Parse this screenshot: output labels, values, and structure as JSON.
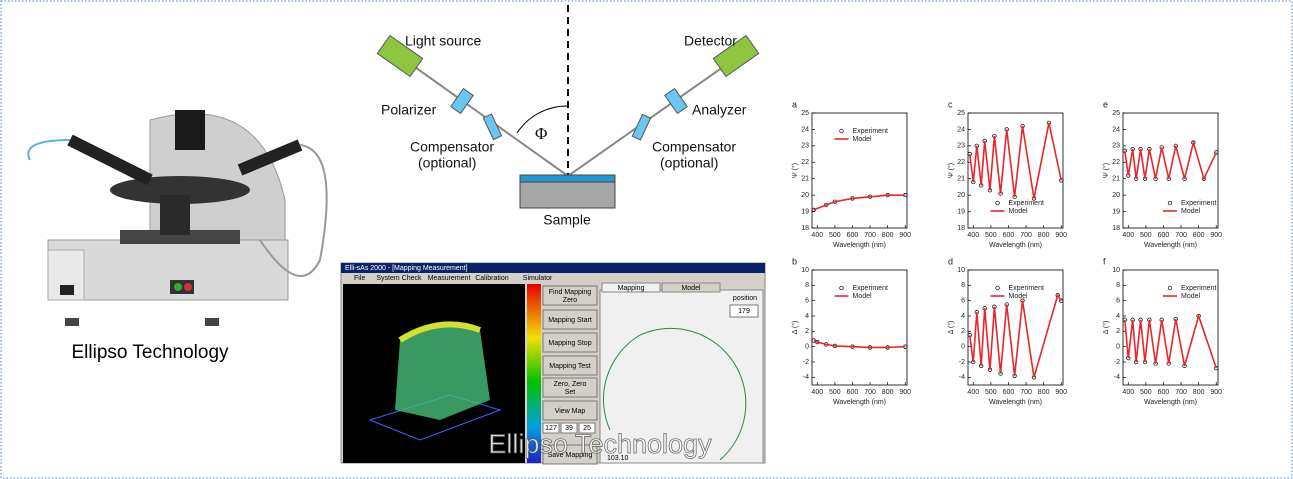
{
  "photo": {
    "caption": "Ellipso Technology"
  },
  "diagram": {
    "light_source": "Light source",
    "detector": "Detector",
    "polarizer": "Polarizer",
    "analyzer": "Analyzer",
    "compensator_left": [
      "Compensator",
      "(optional)"
    ],
    "compensator_right": [
      "Compensator",
      "(optional)"
    ],
    "angle": "Φ",
    "sample": "Sample"
  },
  "software": {
    "title": "Elli-sAs 2000 - [Mapping Measurement]",
    "menu": [
      "File",
      "System Check",
      "Measurement",
      "Calibration",
      "Simulator"
    ],
    "buttons": [
      [
        "Find Mapping",
        "Zero"
      ],
      [
        "Mapping Start"
      ],
      [
        "Mapping Stop"
      ],
      [
        "Mapping Test"
      ],
      [
        "Zero, Zero",
        "Set"
      ],
      [
        "View Map"
      ],
      [
        "Save Mapping"
      ]
    ],
    "tabs": [
      "Mapping",
      "Model"
    ],
    "position_label": "position",
    "position_value": "179",
    "fields": [
      "127",
      "39",
      "25"
    ],
    "reading": "103.10",
    "watermark": "Ellipso Technology"
  },
  "chart_data": [
    {
      "type": "line",
      "panel": "a",
      "xlabel": "Wavelength (nm)",
      "ylabel": "Ψ (°)",
      "legend": "upper center",
      "x": [
        380,
        450,
        500,
        600,
        700,
        800,
        900
      ],
      "xlim": [
        370,
        910
      ],
      "xticks": [
        400,
        500,
        600,
        700,
        800,
        900
      ],
      "ylim": [
        18,
        25
      ],
      "yticks": [
        18,
        19,
        20,
        21,
        22,
        23,
        24,
        25
      ],
      "series": [
        {
          "name": "Experiment",
          "color": "#000000",
          "marker": "circle",
          "values": [
            19.1,
            19.4,
            19.6,
            19.8,
            19.9,
            20.0,
            20.0
          ]
        },
        {
          "name": "Model",
          "color": "#e8262b",
          "marker": "none",
          "values": [
            19.1,
            19.4,
            19.6,
            19.8,
            19.9,
            20.0,
            20.0
          ]
        }
      ]
    },
    {
      "type": "line",
      "panel": "c",
      "xlabel": "Wavelength (nm)",
      "ylabel": "Ψ (°)",
      "legend": "lower center",
      "x": [
        380,
        400,
        420,
        445,
        465,
        495,
        520,
        555,
        590,
        635,
        680,
        745,
        830,
        900
      ],
      "xlim": [
        370,
        910
      ],
      "xticks": [
        400,
        500,
        600,
        700,
        800,
        900
      ],
      "ylim": [
        18,
        25
      ],
      "yticks": [
        18,
        19,
        20,
        21,
        22,
        23,
        24,
        25
      ],
      "series": [
        {
          "name": "Experiment",
          "color": "#000000",
          "marker": "circle",
          "values": [
            22.5,
            20.8,
            23.0,
            20.6,
            23.3,
            20.3,
            23.6,
            20.1,
            24.0,
            19.9,
            24.2,
            19.8,
            24.4,
            20.9
          ]
        },
        {
          "name": "Model",
          "color": "#e8262b",
          "marker": "none",
          "values": [
            22.5,
            20.8,
            23.0,
            20.6,
            23.3,
            20.3,
            23.6,
            20.1,
            24.0,
            19.9,
            24.2,
            19.8,
            24.4,
            20.9
          ]
        }
      ]
    },
    {
      "type": "line",
      "panel": "e",
      "xlabel": "Wavelength (nm)",
      "ylabel": "Ψ (°)",
      "legend": "lower right",
      "x": [
        380,
        400,
        425,
        445,
        470,
        495,
        520,
        555,
        590,
        630,
        670,
        720,
        770,
        830,
        900
      ],
      "xlim": [
        370,
        910
      ],
      "xticks": [
        400,
        500,
        600,
        700,
        800,
        900
      ],
      "ylim": [
        18,
        25
      ],
      "yticks": [
        18,
        19,
        20,
        21,
        22,
        23,
        24,
        25
      ],
      "series": [
        {
          "name": "Experiment",
          "color": "#000000",
          "marker": "circle",
          "values": [
            22.7,
            21.2,
            22.8,
            21.0,
            22.8,
            21.0,
            22.8,
            21.0,
            22.9,
            21.0,
            23.0,
            21.0,
            23.2,
            21.0,
            22.6
          ]
        },
        {
          "name": "Model",
          "color": "#e8262b",
          "marker": "none",
          "values": [
            22.7,
            21.2,
            22.8,
            21.0,
            22.8,
            21.0,
            22.8,
            21.0,
            22.9,
            21.0,
            23.0,
            21.0,
            23.2,
            21.0,
            22.6
          ]
        }
      ]
    },
    {
      "type": "line",
      "panel": "b",
      "xlabel": "Wavelength (nm)",
      "ylabel": "Δ (°)",
      "legend": "upper center",
      "x": [
        380,
        400,
        450,
        500,
        600,
        700,
        800,
        900
      ],
      "xlim": [
        370,
        910
      ],
      "xticks": [
        400,
        500,
        600,
        700,
        800,
        900
      ],
      "ylim": [
        -5,
        10
      ],
      "yticks": [
        -4,
        -2,
        0,
        2,
        4,
        6,
        8,
        10
      ],
      "series": [
        {
          "name": "Experiment",
          "color": "#000000",
          "marker": "circle",
          "values": [
            0.8,
            0.6,
            0.3,
            0.1,
            0,
            -0.1,
            -0.1,
            0
          ]
        },
        {
          "name": "Model",
          "color": "#e8262b",
          "marker": "none",
          "values": [
            0.8,
            0.6,
            0.3,
            0.1,
            0,
            -0.1,
            -0.1,
            0
          ]
        }
      ]
    },
    {
      "type": "line",
      "panel": "d",
      "xlabel": "Wavelength (nm)",
      "ylabel": "Δ (°)",
      "legend": "upper center",
      "x": [
        380,
        400,
        420,
        445,
        465,
        495,
        520,
        555,
        590,
        635,
        680,
        745,
        880,
        900
      ],
      "xlim": [
        370,
        910
      ],
      "xticks": [
        400,
        500,
        600,
        700,
        800,
        900
      ],
      "ylim": [
        -5,
        10
      ],
      "yticks": [
        -4,
        -2,
        0,
        2,
        4,
        6,
        8,
        10
      ],
      "series": [
        {
          "name": "Experiment",
          "color": "#000000",
          "marker": "circle",
          "values": [
            1.5,
            -2,
            4.5,
            -2.5,
            5,
            -3,
            5.2,
            -3.5,
            5.5,
            -3.8,
            6,
            -4,
            6.7,
            6
          ]
        },
        {
          "name": "Model",
          "color": "#e8262b",
          "marker": "none",
          "values": [
            1.5,
            -2,
            4.5,
            -2.5,
            5,
            -3,
            5.2,
            -3.5,
            5.5,
            -3.8,
            6,
            -4,
            6.7,
            6
          ]
        }
      ]
    },
    {
      "type": "line",
      "panel": "f",
      "xlabel": "Wavelength (nm)",
      "ylabel": "Δ (°)",
      "legend": "upper right",
      "x": [
        380,
        400,
        425,
        445,
        470,
        495,
        520,
        555,
        590,
        630,
        670,
        720,
        800,
        900
      ],
      "xlim": [
        370,
        910
      ],
      "xticks": [
        400,
        500,
        600,
        700,
        800,
        900
      ],
      "ylim": [
        -5,
        10
      ],
      "yticks": [
        -4,
        -2,
        0,
        2,
        4,
        6,
        8,
        10
      ],
      "series": [
        {
          "name": "Experiment",
          "color": "#000000",
          "marker": "circle",
          "values": [
            3.5,
            -1.5,
            3.5,
            -2,
            3.5,
            -2,
            3.5,
            -2.2,
            3.5,
            -2.2,
            3.6,
            -2.5,
            4,
            -2.8
          ]
        },
        {
          "name": "Model",
          "color": "#e8262b",
          "marker": "none",
          "values": [
            3.5,
            -1.5,
            3.5,
            -2,
            3.5,
            -2,
            3.5,
            -2.2,
            3.5,
            -2.2,
            3.6,
            -2.5,
            4,
            -2.8
          ]
        }
      ]
    }
  ]
}
